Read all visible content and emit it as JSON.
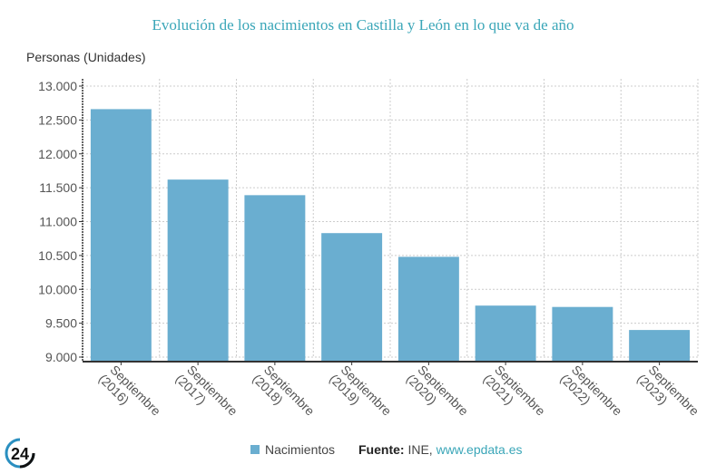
{
  "chart_data": {
    "type": "bar",
    "title": "Evolución de los nacimientos en Castilla y León en lo que va de año",
    "ylabel": "Personas (Unidades)",
    "xlabel": "",
    "categories": [
      [
        "Septiembre",
        "(2016)"
      ],
      [
        "Septiembre",
        "(2017)"
      ],
      [
        "Septiembre",
        "(2018)"
      ],
      [
        "Septiembre",
        "(2019)"
      ],
      [
        "Septiembre",
        "(2020)"
      ],
      [
        "Septiembre",
        "(2021)"
      ],
      [
        "Septiembre",
        "(2022)"
      ],
      [
        "Septiembre",
        "(2023)"
      ]
    ],
    "series": [
      {
        "name": "Nacimientos",
        "color": "#6aaed0",
        "values": [
          12660,
          11620,
          11390,
          10830,
          10480,
          9760,
          9740,
          9400
        ]
      }
    ],
    "ylim": [
      9000,
      13000
    ],
    "yticks": [
      9000,
      9500,
      10000,
      10500,
      11000,
      11500,
      12000,
      12500,
      13000
    ],
    "ytick_labels": [
      "9.000",
      "9.500",
      "10.000",
      "10.500",
      "11.000",
      "11.500",
      "12.000",
      "12.500",
      "13.000"
    ],
    "grid": true,
    "legend": "bottom-center"
  },
  "legend": {
    "label": "Nacimientos"
  },
  "source": {
    "prefix": "Fuente:",
    "text": " INE, ",
    "link": "www.epdata.es"
  },
  "logo": {
    "text": "24"
  },
  "colors": {
    "bar": "#6aaed0",
    "title": "#3aa6b8",
    "grid": "#cccccc",
    "axis": "#333333"
  }
}
